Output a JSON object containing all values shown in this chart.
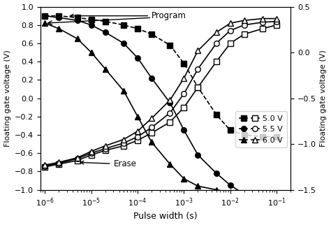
{
  "xlabel": "Pulse width (s)",
  "ylabel_left": "Floating gate voltage (V)",
  "ylabel_right": "Floating gate voltage (V)",
  "ylim_left": [
    -1.0,
    1.0
  ],
  "ylim_right": [
    -1.5,
    0.5
  ],
  "xlim": [
    8e-07,
    0.2
  ],
  "annotation_program": "Program",
  "annotation_erase": "Erase",
  "legend_labels": [
    "5.0 V",
    "5.5 V",
    "6.0 V"
  ],
  "program_50": {
    "x": [
      1e-06,
      2e-06,
      5e-06,
      1e-05,
      2e-05,
      5e-05,
      0.0001,
      0.0002,
      0.0005,
      0.001,
      0.002,
      0.005,
      0.01,
      0.02,
      0.05,
      0.1
    ],
    "y": [
      0.9,
      0.9,
      0.88,
      0.86,
      0.84,
      0.8,
      0.76,
      0.7,
      0.58,
      0.38,
      0.12,
      -0.18,
      -0.35,
      -0.4,
      -0.42,
      -0.42
    ]
  },
  "program_55": {
    "x": [
      1e-06,
      2e-06,
      5e-06,
      1e-05,
      2e-05,
      5e-05,
      0.0001,
      0.0002,
      0.0005,
      0.001,
      0.002,
      0.005,
      0.01,
      0.02,
      0.05,
      0.1
    ],
    "y": [
      0.9,
      0.88,
      0.85,
      0.8,
      0.72,
      0.6,
      0.44,
      0.22,
      -0.05,
      -0.35,
      -0.62,
      -0.82,
      -0.95,
      -1.05,
      -1.1,
      -1.13
    ]
  },
  "program_60": {
    "x": [
      1e-06,
      2e-06,
      5e-06,
      1e-05,
      2e-05,
      5e-05,
      0.0001,
      0.0002,
      0.0005,
      0.001,
      0.002,
      0.005,
      0.01,
      0.02,
      0.05,
      0.1
    ],
    "y": [
      0.82,
      0.76,
      0.65,
      0.5,
      0.32,
      0.08,
      -0.2,
      -0.48,
      -0.72,
      -0.88,
      -0.96,
      -1.0,
      -1.03,
      -1.05,
      -1.06,
      -1.07
    ]
  },
  "erase_50": {
    "x": [
      1e-06,
      2e-06,
      5e-06,
      1e-05,
      2e-05,
      5e-05,
      0.0001,
      0.0002,
      0.0005,
      0.001,
      0.002,
      0.005,
      0.01,
      0.02,
      0.05,
      0.1
    ],
    "y": [
      -0.75,
      -0.72,
      -0.68,
      -0.62,
      -0.57,
      -0.52,
      -0.46,
      -0.38,
      -0.26,
      -0.1,
      0.12,
      0.4,
      0.6,
      0.7,
      0.76,
      0.8
    ]
  },
  "erase_55": {
    "x": [
      1e-06,
      2e-06,
      5e-06,
      1e-05,
      2e-05,
      5e-05,
      0.0001,
      0.0002,
      0.0005,
      0.001,
      0.002,
      0.005,
      0.01,
      0.02,
      0.05,
      0.1
    ],
    "y": [
      -0.74,
      -0.71,
      -0.66,
      -0.6,
      -0.55,
      -0.49,
      -0.42,
      -0.32,
      -0.16,
      0.05,
      0.32,
      0.6,
      0.74,
      0.8,
      0.83,
      0.84
    ]
  },
  "erase_60": {
    "x": [
      1e-06,
      2e-06,
      5e-06,
      1e-05,
      2e-05,
      5e-05,
      0.0001,
      0.0002,
      0.0005,
      0.001,
      0.002,
      0.005,
      0.01,
      0.02,
      0.05,
      0.1
    ],
    "y": [
      -0.73,
      -0.7,
      -0.65,
      -0.58,
      -0.52,
      -0.45,
      -0.36,
      -0.22,
      -0.02,
      0.22,
      0.52,
      0.72,
      0.82,
      0.85,
      0.87,
      0.87
    ]
  }
}
